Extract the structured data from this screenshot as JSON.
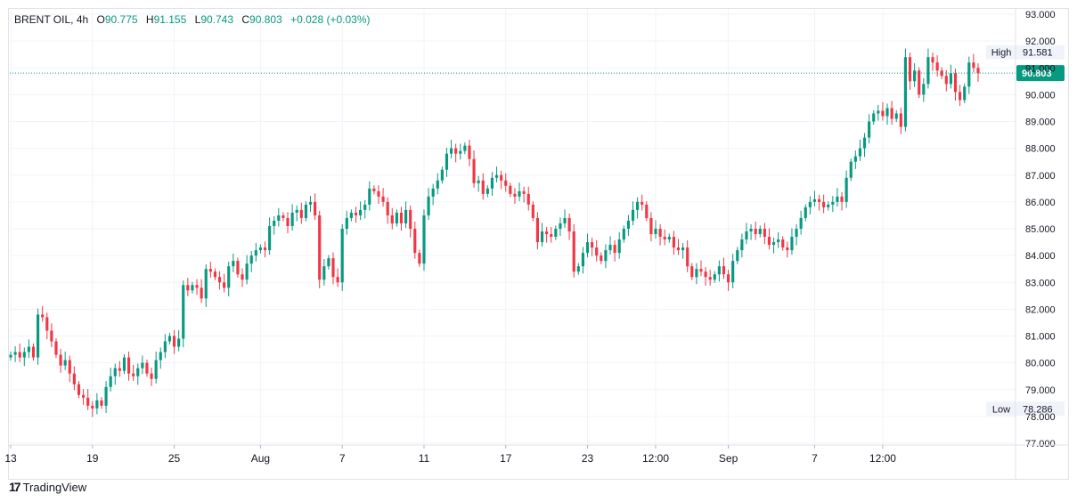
{
  "legend": {
    "symbol": "BRENT OIL",
    "interval": "4h",
    "open_label": "O",
    "open": "90.775",
    "high_label": "H",
    "high": "91.155",
    "low_label": "L",
    "low": "90.743",
    "close_label": "C",
    "close": "90.803",
    "change": "+0.028",
    "change_pct": "(+0.03%)"
  },
  "colors": {
    "up": "#089981",
    "down": "#f23645",
    "grid": "#f0f3fa",
    "axis_text": "#131722"
  },
  "brand": {
    "logo": "17",
    "name": "TradingView"
  },
  "chart_data": {
    "type": "candlestick",
    "title": "BRENT OIL",
    "interval": "4h",
    "ylim": [
      77,
      93
    ],
    "y_ticks": [
      "77.000",
      "78.000",
      "79.000",
      "80.000",
      "81.000",
      "82.000",
      "83.000",
      "84.000",
      "85.000",
      "86.000",
      "87.000",
      "88.000",
      "89.000",
      "90.000",
      "91.000",
      "92.000",
      "93.000"
    ],
    "x_ticks": [
      {
        "label": "13",
        "i": 0
      },
      {
        "label": "19",
        "i": 18
      },
      {
        "label": "25",
        "i": 36
      },
      {
        "label": "Aug",
        "i": 55
      },
      {
        "label": "7",
        "i": 73
      },
      {
        "label": "11",
        "i": 91
      },
      {
        "label": "17",
        "i": 109
      },
      {
        "label": "23",
        "i": 127
      },
      {
        "label": "12:00",
        "i": 142
      },
      {
        "label": "Sep",
        "i": 158
      },
      {
        "label": "7",
        "i": 177
      },
      {
        "label": "12:00",
        "i": 192
      }
    ],
    "last_price": {
      "value": 90.803,
      "label": "90.803"
    },
    "high_marker": {
      "label": "High",
      "value": "91.581"
    },
    "low_marker": {
      "label": "Low",
      "value": "78.286"
    },
    "closes": [
      80.3,
      80.4,
      80.2,
      80.4,
      80.6,
      80.2,
      81.8,
      81.7,
      81.2,
      80.8,
      80.3,
      79.9,
      80.1,
      79.6,
      79.2,
      78.8,
      78.7,
      78.4,
      78.3,
      78.6,
      78.4,
      79.1,
      79.5,
      79.8,
      79.7,
      80.2,
      79.6,
      79.5,
      79.8,
      80.0,
      79.6,
      79.4,
      80.1,
      80.4,
      80.8,
      81.0,
      80.6,
      80.9,
      82.9,
      82.7,
      82.9,
      82.8,
      82.4,
      83.5,
      83.4,
      83.2,
      83.0,
      82.8,
      83.6,
      83.8,
      83.3,
      83.1,
      83.7,
      84.0,
      84.2,
      84.3,
      84.2,
      85.1,
      85.3,
      85.5,
      85.4,
      85.1,
      85.6,
      85.7,
      85.4,
      85.9,
      86.0,
      85.5,
      83.1,
      83.6,
      83.9,
      83.2,
      83.0,
      85.0,
      85.4,
      85.6,
      85.5,
      85.7,
      85.9,
      86.5,
      86.4,
      86.2,
      86.0,
      85.5,
      85.2,
      85.6,
      85.2,
      85.7,
      85.0,
      84.1,
      83.7,
      85.5,
      86.2,
      86.5,
      86.8,
      87.2,
      87.8,
      88.0,
      87.8,
      87.9,
      88.1,
      87.6,
      86.7,
      86.8,
      86.3,
      86.5,
      86.9,
      87.0,
      86.8,
      86.6,
      86.3,
      86.2,
      86.4,
      86.3,
      85.9,
      85.4,
      84.5,
      84.9,
      84.8,
      84.7,
      85.0,
      85.2,
      85.4,
      84.9,
      83.4,
      83.6,
      84.1,
      84.5,
      84.3,
      84.0,
      83.8,
      84.2,
      84.4,
      84.1,
      84.6,
      85.0,
      85.3,
      85.7,
      86.0,
      85.9,
      85.4,
      84.8,
      85.0,
      84.7,
      84.6,
      84.7,
      84.3,
      84.2,
      84.3,
      83.6,
      83.2,
      83.5,
      83.4,
      83.2,
      83.1,
      83.3,
      83.6,
      83.3,
      83.0,
      83.8,
      84.2,
      84.6,
      84.9,
      85.0,
      84.8,
      85.0,
      84.7,
      84.4,
      84.5,
      84.6,
      84.3,
      84.2,
      84.7,
      85.0,
      85.4,
      85.8,
      86.0,
      86.1,
      86.0,
      85.8,
      85.9,
      86.0,
      86.2,
      86.0,
      86.9,
      87.5,
      87.7,
      88.0,
      88.4,
      89.0,
      89.3,
      89.4,
      89.2,
      89.5,
      89.1,
      89.3,
      88.8,
      91.4,
      90.5,
      90.9,
      90.0,
      90.4,
      91.4,
      91.2,
      90.9,
      90.7,
      90.4,
      90.8,
      90.1,
      89.8,
      90.3,
      91.2,
      91.0,
      90.8
    ]
  }
}
